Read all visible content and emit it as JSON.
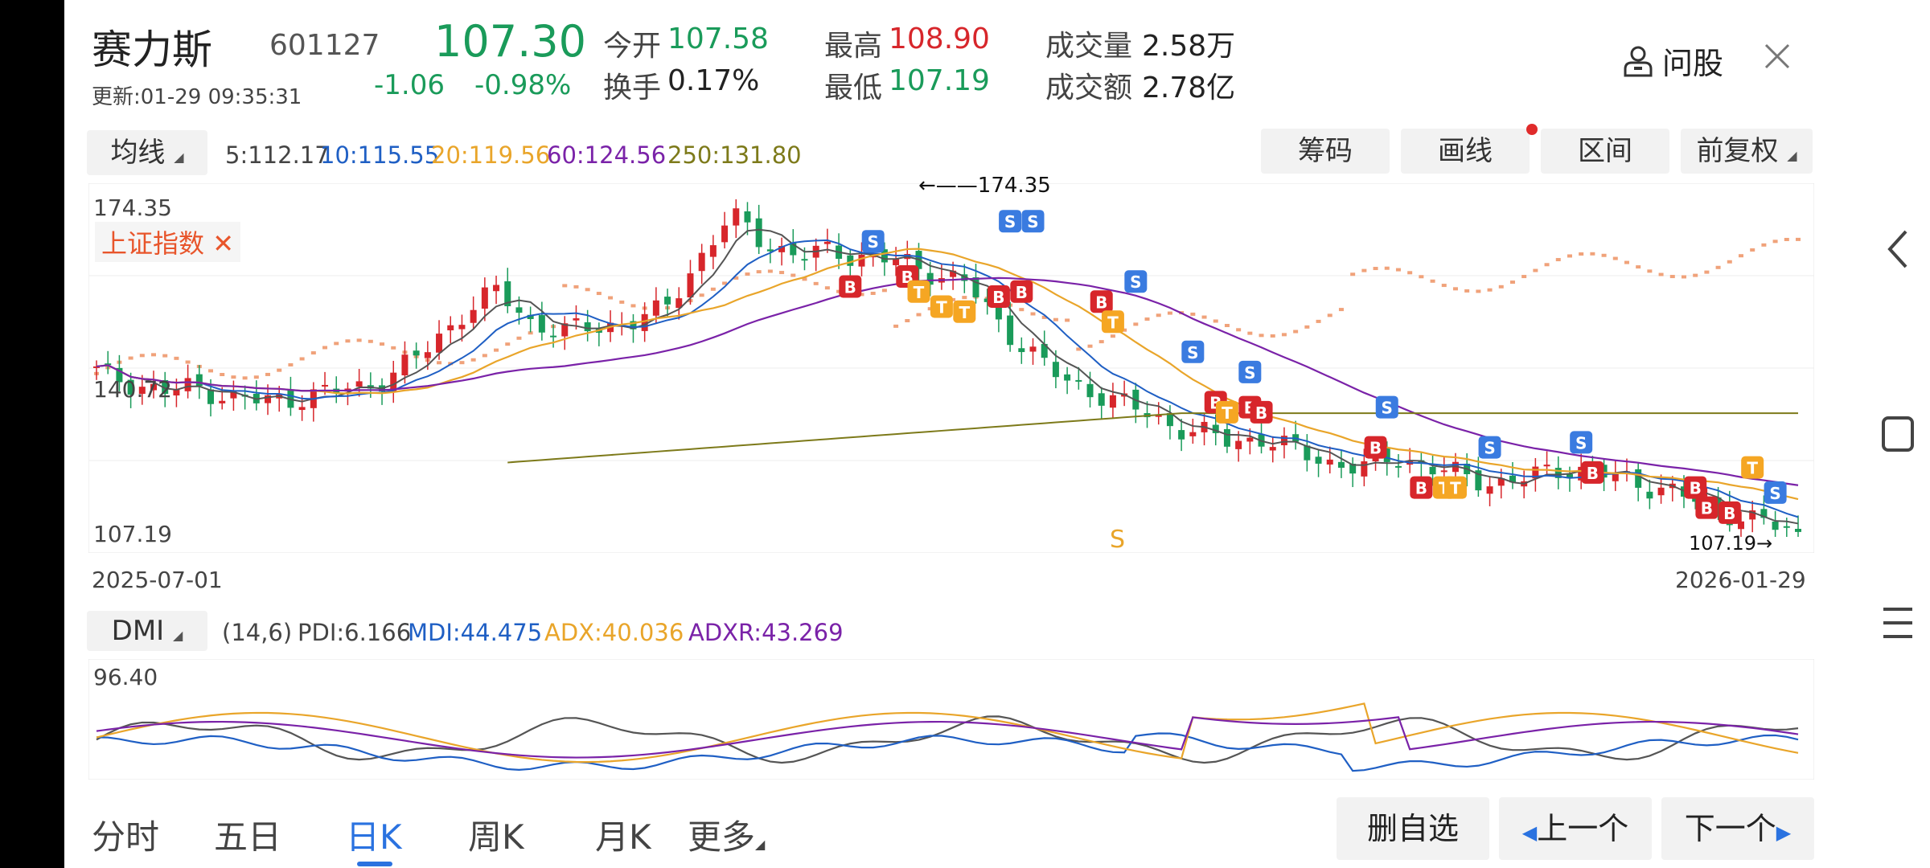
{
  "header": {
    "stock_name": "赛力斯",
    "stock_code": "601127",
    "price": "107.30",
    "change": "-1.06",
    "change_pct": "-0.98%",
    "update_time": "更新:01-29 09:35:31",
    "open_label": "今开",
    "open_value": "107.58",
    "turnover_label": "换手",
    "turnover_value": "0.17%",
    "high_label": "最高",
    "high_value": "108.90",
    "low_label": "最低",
    "low_value": "107.19",
    "volume_label": "成交量",
    "volume_value": "2.58万",
    "amount_label": "成交额",
    "amount_value": "2.78亿",
    "ask_label": "问股"
  },
  "ma_bar": {
    "selector_label": "均线",
    "ma5": "5:112.17",
    "ma10": "10:115.55",
    "ma20": "20:119.56",
    "ma60": "60:124.56",
    "ma250": "250:131.80"
  },
  "tool_buttons": {
    "chips": "筹码",
    "draw": "画线",
    "range": "区间",
    "adjust": "前复权"
  },
  "main_chart": {
    "y_top": "174.35",
    "y_mid": "140.72",
    "y_bottom": "107.19",
    "max_marker": "174.35",
    "min_marker": "107.19",
    "overlay_label": "上证指数",
    "extra_signal": "S",
    "x_start": "2025-07-01",
    "x_end": "2026-01-29"
  },
  "indicator_bar": {
    "selector_label": "DMI",
    "params": "(14,6)",
    "pdi": "PDI:6.166",
    "mdi": "MDI:44.475",
    "adx": "ADX:40.036",
    "adxr": "ADXR:43.269",
    "y_top": "96.40"
  },
  "bottom_nav": {
    "tabs": [
      "分时",
      "五日",
      "日K",
      "周K",
      "月K"
    ],
    "active_tab": "日K",
    "more_label": "更多",
    "remove_watch": "删自选",
    "prev_label": "上一个",
    "next_label": "下一个"
  },
  "colors": {
    "up_red": "#d7262b",
    "down_green": "#1a9b5a",
    "ma5": "#555555",
    "ma10": "#1f5fc4",
    "ma20": "#e9a52a",
    "ma60": "#7a22a8",
    "ma250": "#7d7a1a",
    "index_overlay": "#f0a27a",
    "active_tab": "#2a72e0"
  },
  "chart_data": {
    "type": "candlestick",
    "x_range": [
      "2025-07-01",
      "2026-01-29"
    ],
    "ylim": [
      107.19,
      174.35
    ],
    "anchors": {
      "high": 174.35,
      "low": 107.19
    },
    "ma_latest": {
      "ma5": 112.17,
      "ma10": 115.55,
      "ma20": 119.56,
      "ma60": 124.56,
      "ma250": 131.8
    },
    "close_trend": [
      140,
      138,
      136,
      137,
      135,
      134,
      135,
      136,
      137,
      140,
      145,
      152,
      156,
      150,
      148,
      149,
      150,
      152,
      162,
      171,
      166,
      163,
      164,
      163,
      162,
      160,
      158,
      150,
      144,
      138,
      136,
      133,
      130,
      128,
      126,
      127,
      124,
      122,
      121,
      123,
      121,
      119,
      118,
      119,
      121,
      120,
      118,
      117,
      114,
      112,
      110,
      107.3
    ],
    "dmi": {
      "ylim": [
        0,
        96.4
      ],
      "latest": {
        "PDI": 6.166,
        "MDI": 44.475,
        "ADX": 40.036,
        "ADXR": 43.269
      }
    }
  }
}
